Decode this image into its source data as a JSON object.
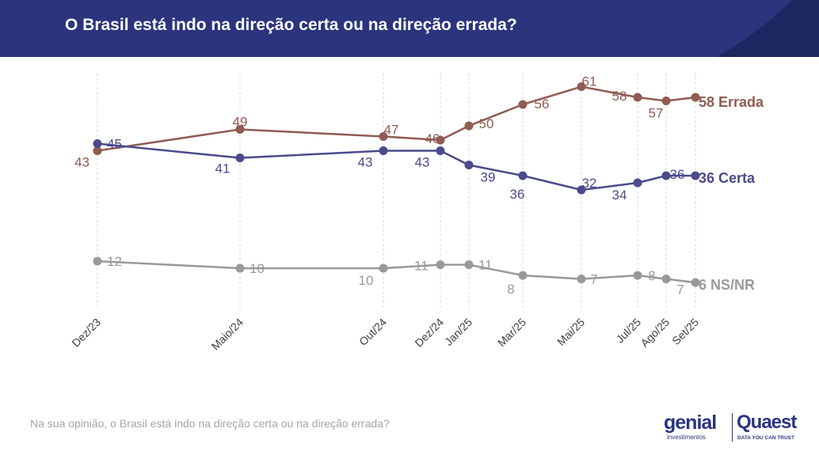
{
  "header": {
    "title": "O Brasil está indo na direção certa ou na direção errada?",
    "bg_color": "#2b347c",
    "accent_color": "#1e2661"
  },
  "chart_data": {
    "type": "line",
    "title": "O Brasil está indo na direção certa ou na direção errada?",
    "xlabel": "",
    "ylabel": "",
    "ylim": [
      0,
      70
    ],
    "grid": "vertical",
    "legend": "end-of-line labels",
    "categories": [
      "Dez/23",
      "Maio/24",
      "Out/24",
      "Dez/24",
      "Jan/25",
      "Mar/25",
      "Mai/25",
      "Jul/25",
      "Ago/25",
      "Set/25"
    ],
    "series": [
      {
        "name": "Errada",
        "end_label": "58 Errada",
        "color": "#8f5b52",
        "values": [
          43,
          49,
          47,
          46,
          50,
          56,
          61,
          58,
          57,
          58
        ]
      },
      {
        "name": "Certa",
        "end_label": "36 Certa",
        "color": "#4a4a8c",
        "values": [
          45,
          41,
          43,
          43,
          39,
          36,
          32,
          34,
          36,
          36
        ]
      },
      {
        "name": "NS/NR",
        "end_label": "6 NS/NR",
        "color": "#999999",
        "values": [
          12,
          10,
          10,
          11,
          11,
          8,
          7,
          8,
          7,
          6
        ]
      }
    ]
  },
  "footnote": "Na sua opinião, o Brasil está indo na direção certa ou na direção errada?",
  "logos": {
    "genial_name": "genial",
    "genial_sub": "investimentos",
    "quaest_name": "Quaest",
    "quaest_tagline": "DATA YOU CAN TRUST",
    "brand_color": "#2b3480"
  }
}
